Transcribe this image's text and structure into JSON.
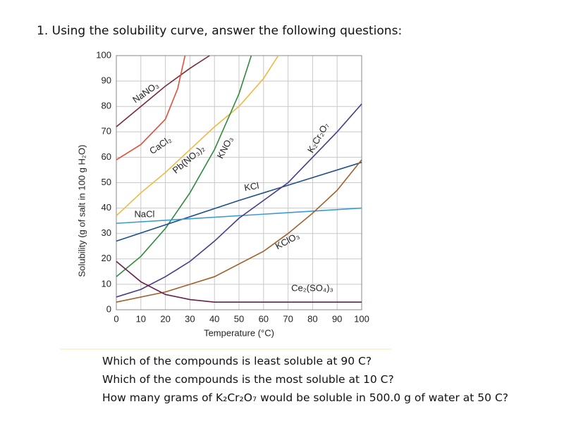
{
  "header": {
    "title": "1. Using the solubility curve, answer the following questions:"
  },
  "chart_data": {
    "type": "line",
    "xlabel": "Temperature (°C)",
    "ylabel": "Solubility (g of salt in 100 g H₂O)",
    "xlim": [
      0,
      100
    ],
    "xticks": [
      0,
      10,
      20,
      30,
      40,
      50,
      60,
      70,
      80,
      90,
      100
    ],
    "ylim": [
      0,
      100
    ],
    "yticks": [
      0,
      10,
      20,
      30,
      40,
      50,
      60,
      70,
      80,
      90,
      100
    ],
    "grid": true,
    "series": [
      {
        "name": "NaNO₃",
        "color": "#7a2a3a",
        "x": [
          0,
          10,
          20,
          30,
          38
        ],
        "values": [
          72,
          80,
          88,
          95,
          100
        ]
      },
      {
        "name": "CaCl₂",
        "color": "#e0503a",
        "x": [
          0,
          10,
          20,
          25,
          28
        ],
        "values": [
          59,
          65,
          75,
          87,
          100
        ]
      },
      {
        "name": "Pb(NO₃)₂",
        "color": "#f0b840",
        "x": [
          0,
          10,
          20,
          30,
          40,
          50,
          60,
          66
        ],
        "values": [
          37,
          46,
          54,
          63,
          72,
          80,
          91,
          100
        ]
      },
      {
        "name": "KNO₃",
        "color": "#2e8a3e",
        "x": [
          0,
          10,
          20,
          30,
          40,
          50,
          55
        ],
        "values": [
          13,
          21,
          32,
          46,
          63,
          85,
          100
        ]
      },
      {
        "name": "KCl",
        "color": "#1f4f8f",
        "x": [
          0,
          50,
          100
        ],
        "values": [
          27,
          43,
          58
        ]
      },
      {
        "name": "NaCl",
        "color": "#3a9ad8",
        "x": [
          0,
          100
        ],
        "values": [
          34,
          40
        ]
      },
      {
        "name": "K₂Cr₂O₇",
        "color": "#4a3a8a",
        "x": [
          0,
          10,
          20,
          30,
          40,
          50,
          60,
          70,
          80,
          90,
          100
        ],
        "values": [
          5,
          8,
          13,
          19,
          27,
          36,
          43,
          50,
          60,
          70,
          81
        ]
      },
      {
        "name": "KClO₃",
        "color": "#a0602a",
        "x": [
          0,
          20,
          40,
          60,
          70,
          80,
          90,
          100
        ],
        "values": [
          3,
          7,
          13,
          23,
          30,
          38,
          47,
          59
        ]
      },
      {
        "name": "Ce₂(SO₄)₃",
        "color": "#6a1f4a",
        "x": [
          0,
          10,
          20,
          30,
          40,
          100
        ],
        "values": [
          19,
          11,
          6,
          4,
          3,
          3
        ]
      }
    ]
  },
  "questions": [
    "Which of the compounds is least soluble at 90 C?",
    "Which of the compounds is the most soluble at 10 C?",
    "How many grams of K₂Cr₂O₇ would be soluble in 500.0 g of water at 50 C?"
  ]
}
